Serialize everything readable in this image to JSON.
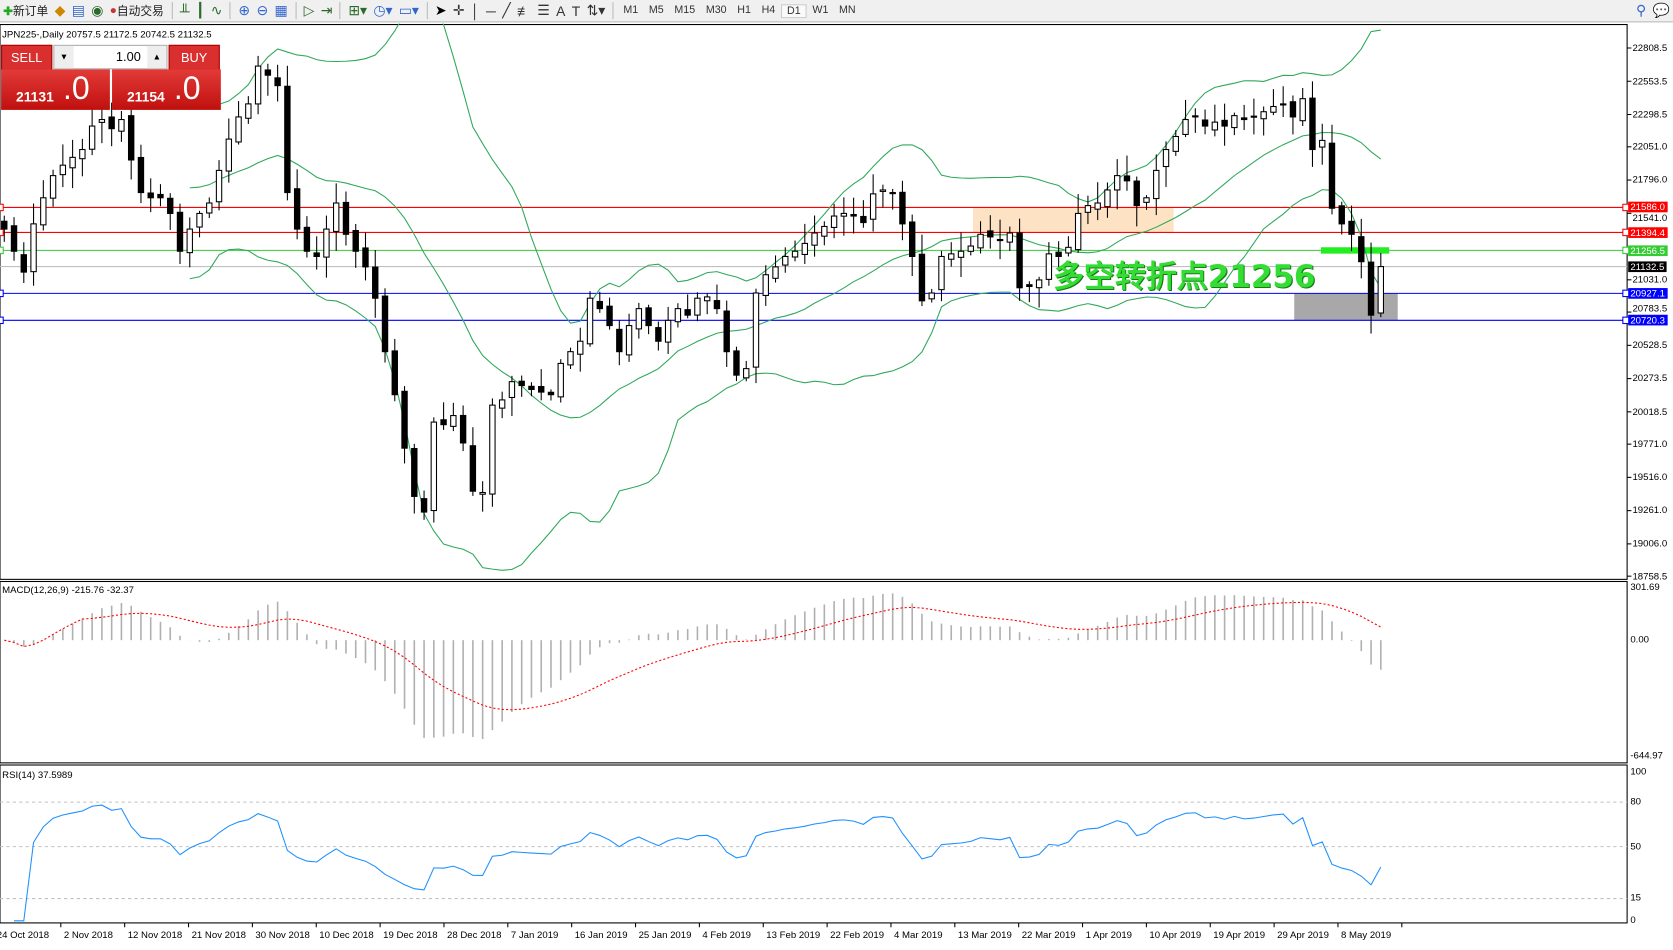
{
  "toolbar": {
    "new_order": "新订单",
    "auto_trading": "自动交易",
    "timeframes": [
      "M1",
      "M5",
      "M15",
      "M30",
      "H1",
      "H4",
      "D1",
      "W1",
      "MN"
    ],
    "active_timeframe": "D1",
    "icons": [
      "chart-bar-icon",
      "candlestick-icon",
      "line-chart-icon",
      "zoom-in-icon",
      "zoom-out-icon",
      "tile-windows-icon",
      "autoscroll-icon",
      "chart-shift-icon",
      "add-indicator-icon",
      "period-icon",
      "templates-icon",
      "cursor-icon",
      "crosshair-icon",
      "vertical-line-icon",
      "horizontal-line-icon",
      "trendline-icon",
      "fibonacci-icon",
      "text-icon",
      "label-icon",
      "arrows-icon",
      "search-icon",
      "chat-icon"
    ]
  },
  "chart": {
    "symbol_line": "JPN225-,Daily  20757.5 21172.5 20742.5 21132.5",
    "one_click": {
      "sell_label": "SELL",
      "buy_label": "BUY",
      "lot": "1.00",
      "sell_big": "21131",
      "sell_small": ".0",
      "buy_big": "21154",
      "buy_small": ".0"
    },
    "annotation_text": "多空转折点21256",
    "price_ticks": [
      "22808.5",
      "22553.5",
      "22298.5",
      "22051.0",
      "21796.0",
      "21541.0",
      "21031.0",
      "20783.5",
      "20528.5",
      "20273.5",
      "20018.5",
      "19771.0",
      "19516.0",
      "19261.0",
      "19006.0",
      "18758.5"
    ],
    "price_lines": [
      {
        "value": "21586.0",
        "color": "#ff0000"
      },
      {
        "value": "21394.4",
        "color": "#ff0000"
      },
      {
        "value": "21256.5",
        "color": "#33cc33"
      },
      {
        "value": "21132.5",
        "color": "#000000"
      },
      {
        "value": "20927.1",
        "color": "#0000ff"
      },
      {
        "value": "20720.3",
        "color": "#0000ff"
      }
    ],
    "zones": [
      {
        "from": 21586.0,
        "to": 21394.4,
        "color": "#fde2c4"
      },
      {
        "from": 20927.1,
        "to": 20720.3,
        "color": "#a8a8a8"
      }
    ],
    "colors": {
      "bands": "#2ea85a",
      "macd_hist": "#b0b0b0",
      "macd_signal": "#ff0000",
      "rsi": "#1e90ff",
      "annotation": "#33dd33"
    }
  },
  "macd": {
    "label": "MACD(12,26,9) -215.76 -32.37",
    "ticks": [
      "301.69",
      "0.00",
      "-644.97"
    ]
  },
  "rsi": {
    "label": "RSI(14) 37.5989",
    "ticks": [
      "100",
      "80",
      "50",
      "15",
      "0"
    ],
    "levels": [
      80,
      50,
      15
    ]
  },
  "dates": [
    "24 Oct 2018",
    "2 Nov 2018",
    "12 Nov 2018",
    "21 Nov 2018",
    "30 Nov 2018",
    "10 Dec 2018",
    "19 Dec 2018",
    "28 Dec 2018",
    "7 Jan 2019",
    "16 Jan 2019",
    "25 Jan 2019",
    "4 Feb 2019",
    "13 Feb 2019",
    "22 Feb 2019",
    "4 Mar 2019",
    "13 Mar 2019",
    "22 Mar 2019",
    "1 Apr 2019",
    "10 Apr 2019",
    "19 Apr 2019",
    "29 Apr 2019",
    "8 May 2019"
  ],
  "chart_data": {
    "type": "candlestick",
    "symbol": "JPN225-",
    "timeframe": "Daily",
    "ylim": [
      18758.5,
      22808.5
    ],
    "closes": [
      21420,
      21250,
      21090,
      21460,
      21660,
      21830,
      21910,
      21970,
      22030,
      22210,
      22260,
      22190,
      22260,
      21950,
      21700,
      21660,
      21660,
      21540,
      21250,
      21420,
      21540,
      21620,
      21870,
      22110,
      22280,
      22380,
      22670,
      22600,
      22520,
      21700,
      21420,
      21250,
      21210,
      21420,
      21620,
      21380,
      21250,
      21130,
      20890,
      20480,
      20150,
      19740,
      19370,
      19250,
      19940,
      19920,
      19990,
      19780,
      19410,
      19400,
      20070,
      20110,
      20250,
      20220,
      20190,
      20170,
      20150,
      20390,
      20480,
      20560,
      20890,
      20810,
      20680,
      20480,
      20680,
      20810,
      20680,
      20560,
      20720,
      20810,
      20760,
      20890,
      20900,
      20810,
      20480,
      20300,
      20350,
      20930,
      21070,
      21130,
      21210,
      21250,
      21310,
      21390,
      21440,
      21520,
      21540,
      21520,
      21470,
      21690,
      21720,
      21700,
      21460,
      21210,
      20870,
      20930,
      21210,
      21230,
      21250,
      21290,
      21380,
      21360,
      21340,
      21390,
      20970,
      20980,
      21030,
      21230,
      21210,
      21280,
      21540,
      21600,
      21620,
      21720,
      21830,
      21790,
      21600,
      21660,
      21870,
      22030,
      22130,
      22260,
      22280,
      22210,
      22240,
      22210,
      22290,
      22260,
      22280,
      22320,
      22360,
      22380,
      22280,
      22420,
      22030,
      22100,
      21580,
      21460,
      21380,
      21170,
      20760,
      21132.5
    ]
  }
}
